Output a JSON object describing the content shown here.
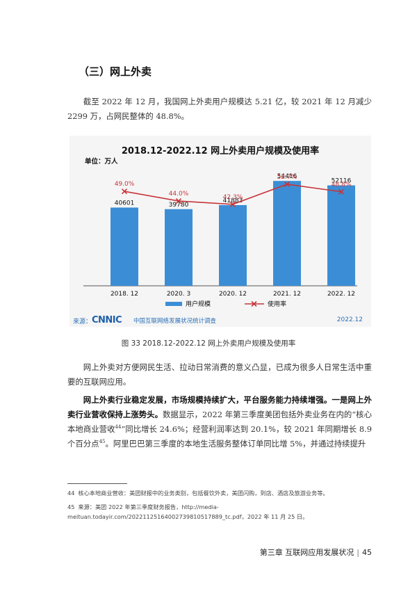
{
  "section_title": "（三）网上外卖",
  "intro_paragraph": "截至 2022 年 12 月，我国网上外卖用户规模达 5.21 亿，较 2021 年 12 月减少 2299 万，占网民整体的 48.8%。",
  "figure": {
    "caption": "图 33  2018.12-2022.12 网上外卖用户规模及使用率",
    "source_label": "来源：",
    "source_logo": "CNNIC",
    "source_org": "中国互联网络发展状况统计调查",
    "source_date": "2022.12"
  },
  "chart_data": {
    "type": "bar",
    "title": "2018.12-2022.12 网上外卖用户规模及使用率",
    "unit_label": "单位：万人",
    "categories": [
      "2018. 12",
      "2020. 3",
      "2020. 12",
      "2021. 12",
      "2022. 12"
    ],
    "bar_labels": [
      "40601",
      "39780",
      "41883",
      "54416",
      "52116"
    ],
    "line_labels": [
      "49.0%",
      "44.0%",
      "42.3%",
      "52.7%",
      "48.8%"
    ],
    "series": [
      {
        "name": "用户规模",
        "type": "bar",
        "values": [
          40601,
          39780,
          41883,
          54416,
          52116
        ],
        "color": "#3b8ed6"
      },
      {
        "name": "使用率",
        "type": "line",
        "values": [
          49.0,
          44.0,
          42.3,
          52.7,
          48.8
        ],
        "color": "#c7353a"
      }
    ],
    "ylim": [
      0,
      70000
    ],
    "y2lim": [
      0,
      70
    ],
    "legend_position": "bottom",
    "grid": false
  },
  "paragraph2": "网上外卖对方便网民生活、拉动日常消费的意义凸显，已成为很多人日常生活中重要的互联网应用。",
  "paragraph3": {
    "bold1": "网上外卖行业稳定发展，市场规模持续扩大，平台服务能力持续增强。",
    "bold2": "一是网上外卖行业营收保持上涨势头。",
    "text1": "数据显示，2022 年第三季度美团包括外卖业务在内的“核心本地商业营收",
    "sup1": "44",
    "text2": "”同比增长 24.6%；经营利润率达到 20.1%，较 2021 年同期增长 8.9 个百分点",
    "sup2": "45",
    "text3": "。阿里巴巴第三季度的本地生活服务整体订单同比增 5%，并通过持续提升"
  },
  "footnotes": [
    {
      "num": "44",
      "text": "核心本地商业营收：美团财报中的业务类别，包括餐饮外卖，美团闪购，到店、酒店及旅游业务等。"
    },
    {
      "num": "45",
      "text": "来源：美团 2022 年第三季度财务报告，http://media-meituan.todayir.com/20221125164002739810517889_tc.pdf，2022 年 11 月 25 日。"
    }
  ],
  "footer": {
    "chapter": "第三章   互联网应用发展状况",
    "page": "45"
  }
}
